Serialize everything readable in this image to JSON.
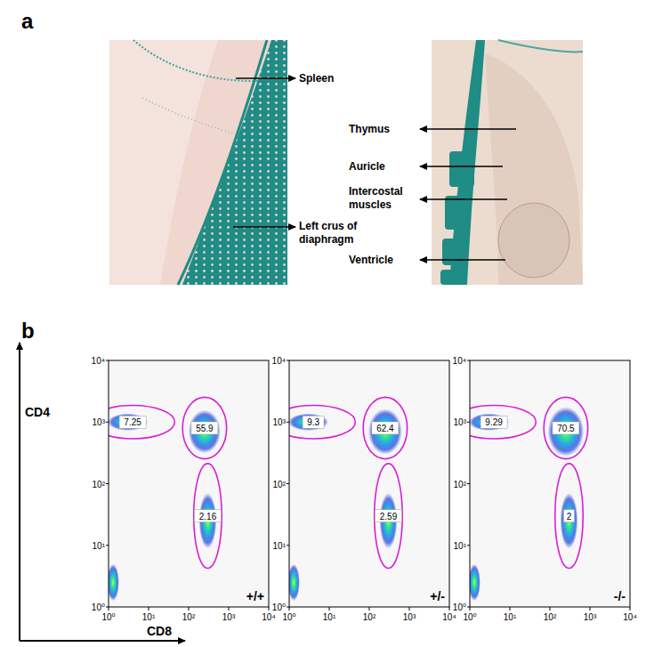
{
  "figure": {
    "panels": [
      "a",
      "b"
    ]
  },
  "panel_a": {
    "left_labels": [
      "Spleen",
      "Left crus of diaphragm"
    ],
    "right_labels": [
      "Thymus",
      "Auricle",
      "Intercostal muscles",
      "Ventricle"
    ]
  },
  "axis_labels": {
    "x": "CD8",
    "y": "CD4"
  },
  "chart_data": [
    {
      "type": "scatter",
      "title": "+/+",
      "log": true,
      "xlim": [
        1,
        10000
      ],
      "ylim": [
        1,
        10000
      ],
      "xticks": [
        {
          "value": 1,
          "label": "10⁰"
        },
        {
          "value": 10,
          "label": "10¹"
        },
        {
          "value": 100,
          "label": "10²"
        },
        {
          "value": 1000,
          "label": "10³"
        },
        {
          "value": 10000,
          "label": "10⁴"
        }
      ],
      "yticks": [
        {
          "value": 1,
          "label": "10⁰"
        },
        {
          "value": 10,
          "label": "10¹"
        },
        {
          "value": 100,
          "label": "10²"
        },
        {
          "value": 1000,
          "label": "10³"
        },
        {
          "value": 10000,
          "label": "10⁴"
        }
      ],
      "populations": [
        {
          "center": [
            1.3,
            2.5
          ],
          "spread": [
            0.15,
            0.3
          ]
        },
        {
          "center": [
            250,
            700
          ],
          "spread": [
            0.4,
            0.35
          ]
        },
        {
          "center": [
            3,
            1000
          ],
          "spread": [
            0.5,
            0.14
          ]
        },
        {
          "center": [
            300,
            25
          ],
          "spread": [
            0.22,
            0.45
          ]
        }
      ],
      "gates": [
        {
          "value": 7.25,
          "center": [
            4,
            1000
          ],
          "radius": [
            1.05,
            0.27
          ]
        },
        {
          "value": 55.9,
          "center": [
            250,
            800
          ],
          "radius": [
            0.55,
            0.5
          ]
        },
        {
          "value": 2.16,
          "center": [
            300,
            30
          ],
          "radius": [
            0.35,
            0.85
          ]
        }
      ],
      "data_labels": true
    },
    {
      "type": "scatter",
      "title": "+/-",
      "log": true,
      "xlim": [
        1,
        10000
      ],
      "ylim": [
        1,
        10000
      ],
      "xticks": [
        {
          "value": 1,
          "label": "10⁰"
        },
        {
          "value": 10,
          "label": "10¹"
        },
        {
          "value": 100,
          "label": "10²"
        },
        {
          "value": 1000,
          "label": "10³"
        },
        {
          "value": 10000,
          "label": "10⁴"
        }
      ],
      "yticks": [
        {
          "value": 1,
          "label": "10⁰"
        },
        {
          "value": 10,
          "label": "10¹"
        },
        {
          "value": 100,
          "label": "10²"
        },
        {
          "value": 1000,
          "label": "10³"
        },
        {
          "value": 10000,
          "label": "10⁴"
        }
      ],
      "populations": [
        {
          "center": [
            1.3,
            2.5
          ],
          "spread": [
            0.15,
            0.3
          ]
        },
        {
          "center": [
            250,
            700
          ],
          "spread": [
            0.42,
            0.37
          ]
        },
        {
          "center": [
            3,
            1000
          ],
          "spread": [
            0.5,
            0.14
          ]
        },
        {
          "center": [
            300,
            25
          ],
          "spread": [
            0.22,
            0.45
          ]
        }
      ],
      "gates": [
        {
          "value": 9.3,
          "center": [
            4,
            1000
          ],
          "radius": [
            1.05,
            0.27
          ]
        },
        {
          "value": 62.4,
          "center": [
            250,
            800
          ],
          "radius": [
            0.55,
            0.5
          ]
        },
        {
          "value": 2.59,
          "center": [
            300,
            30
          ],
          "radius": [
            0.35,
            0.85
          ]
        }
      ],
      "data_labels": true
    },
    {
      "type": "scatter",
      "title": "-/-",
      "log": true,
      "xlim": [
        1,
        10000
      ],
      "ylim": [
        1,
        10000
      ],
      "xticks": [
        {
          "value": 1,
          "label": "10⁰"
        },
        {
          "value": 10,
          "label": "10¹"
        },
        {
          "value": 100,
          "label": "10²"
        },
        {
          "value": 1000,
          "label": "10³"
        },
        {
          "value": 10000,
          "label": "10⁴"
        }
      ],
      "yticks": [
        {
          "value": 1,
          "label": "10⁰"
        },
        {
          "value": 10,
          "label": "10¹"
        },
        {
          "value": 100,
          "label": "10²"
        },
        {
          "value": 1000,
          "label": "10³"
        },
        {
          "value": 10000,
          "label": "10⁴"
        }
      ],
      "populations": [
        {
          "center": [
            1.3,
            2.5
          ],
          "spread": [
            0.15,
            0.3
          ]
        },
        {
          "center": [
            250,
            700
          ],
          "spread": [
            0.45,
            0.4
          ]
        },
        {
          "center": [
            3,
            1000
          ],
          "spread": [
            0.5,
            0.14
          ]
        },
        {
          "center": [
            300,
            25
          ],
          "spread": [
            0.22,
            0.45
          ]
        }
      ],
      "gates": [
        {
          "value": 9.29,
          "center": [
            4,
            1000
          ],
          "radius": [
            1.05,
            0.27
          ]
        },
        {
          "value": 70.5,
          "center": [
            250,
            800
          ],
          "radius": [
            0.55,
            0.5
          ]
        },
        {
          "value": 2,
          "center": [
            300,
            30
          ],
          "radius": [
            0.35,
            0.85
          ]
        }
      ],
      "data_labels": true
    }
  ]
}
